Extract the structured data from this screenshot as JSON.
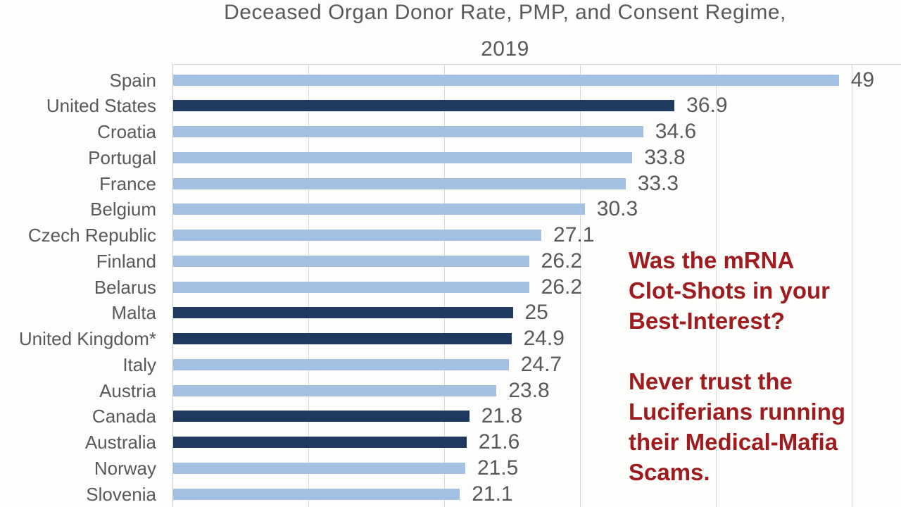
{
  "title": {
    "line1": "Deceased Organ Donor Rate, PMP, and Consent Regime,",
    "line2": "2019"
  },
  "chart_data": {
    "type": "bar",
    "orientation": "horizontal",
    "title": "Deceased Organ Donor Rate, PMP, and Consent Regime, 2019",
    "categories": [
      "Spain",
      "United States",
      "Croatia",
      "Portugal",
      "France",
      "Belgium",
      "Czech Republic",
      "Finland",
      "Belarus",
      "Malta",
      "United Kingdom*",
      "Italy",
      "Austria",
      "Canada",
      "Australia",
      "Norway",
      "Slovenia"
    ],
    "values": [
      49,
      36.9,
      34.6,
      33.8,
      33.3,
      30.3,
      27.1,
      26.2,
      26.2,
      25,
      24.9,
      24.7,
      23.8,
      21.8,
      21.6,
      21.5,
      21.1
    ],
    "value_labels": [
      "49",
      "36.9",
      "34.6",
      "33.8",
      "33.3",
      "30.3",
      "27.1",
      "26.2",
      "26.2",
      "25",
      "24.9",
      "24.7",
      "23.8",
      "21.8",
      "21.6",
      "21.5",
      "21.1"
    ],
    "bar_styles": [
      "light",
      "dark",
      "light",
      "light",
      "light",
      "light",
      "light",
      "light",
      "light",
      "dark",
      "dark",
      "light",
      "light",
      "dark",
      "dark",
      "light",
      "light"
    ],
    "colors": {
      "light": "#a3c2e3",
      "dark": "#1f3a60",
      "gridline": "#d9d9d9",
      "label_text": "#595959"
    },
    "xlim": [
      0,
      53.6
    ],
    "gridline_interval": 10,
    "gridline_values": [
      0,
      10,
      20,
      30,
      40,
      50
    ],
    "grid": "vertical-on",
    "legend": "not-visible"
  },
  "annotation": {
    "color": "#9e1b1e",
    "block1_lines": [
      "Was the mRNA",
      "Clot-Shots in your",
      "Best-Interest?"
    ],
    "block2_lines": [
      "Never trust the",
      "Luciferians running",
      "their Medical-Mafia",
      "Scams."
    ]
  }
}
